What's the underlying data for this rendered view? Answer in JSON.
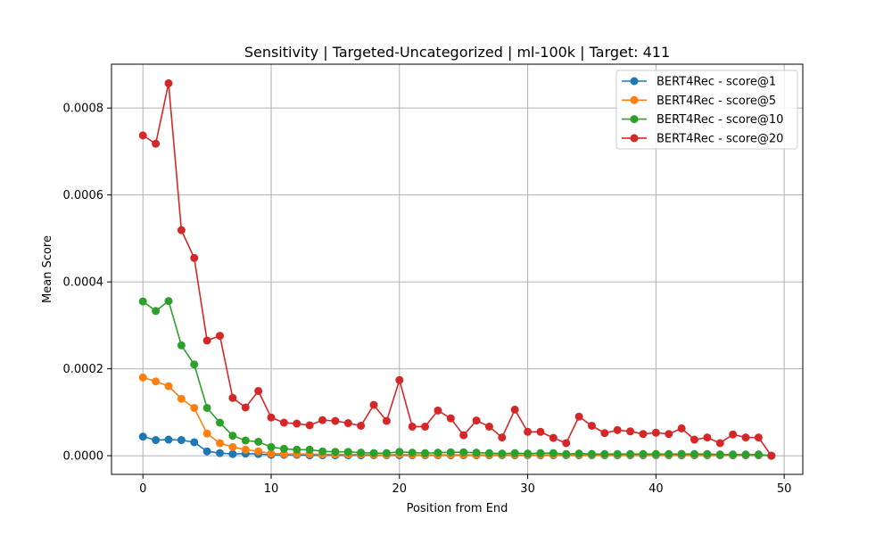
{
  "chart_data": {
    "type": "line",
    "title": "Sensitivity | Targeted-Uncategorized | ml-100k | Target: 411",
    "xlabel": "Position from End",
    "ylabel": "Mean Score",
    "xlim": [
      -2.45,
      51.45
    ],
    "ylim": [
      -4.29e-05,
      0.0009009
    ],
    "xticks": [
      0,
      10,
      20,
      30,
      40,
      50
    ],
    "xtick_labels": [
      "0",
      "10",
      "20",
      "30",
      "40",
      "50"
    ],
    "yticks": [
      0,
      0.0002,
      0.0004,
      0.0006,
      0.0008
    ],
    "ytick_labels": [
      "0.0000",
      "0.0002",
      "0.0004",
      "0.0006",
      "0.0008"
    ],
    "grid": true,
    "legend_position": "top-right",
    "x": [
      0,
      1,
      2,
      3,
      4,
      5,
      6,
      7,
      8,
      9,
      10,
      11,
      12,
      13,
      14,
      15,
      16,
      17,
      18,
      19,
      20,
      21,
      22,
      23,
      24,
      25,
      26,
      27,
      28,
      29,
      30,
      31,
      32,
      33,
      34,
      35,
      36,
      37,
      38,
      39,
      40,
      41,
      42,
      43,
      44,
      45,
      46,
      47,
      48,
      49
    ],
    "series": [
      {
        "name": "BERT4Rec - score@1",
        "color": "#1f77b4",
        "values": [
          4.4e-05,
          3.6e-05,
          3.7e-05,
          3.6e-05,
          3.1e-05,
          1e-05,
          6e-06,
          4e-06,
          5e-06,
          4e-06,
          2e-06,
          2e-06,
          2e-06,
          1e-06,
          1e-06,
          1e-06,
          1e-06,
          1e-06,
          1e-06,
          1e-06,
          1e-06,
          1e-06,
          1e-06,
          1e-06,
          1e-06,
          1e-06,
          1e-06,
          1e-06,
          1e-06,
          1e-06,
          1e-06,
          1e-06,
          1e-06,
          1e-06,
          1e-06,
          1e-06,
          1e-06,
          1e-06,
          1e-06,
          1e-06,
          1e-06,
          1e-06,
          1e-06,
          1e-06,
          1e-06,
          1e-06,
          1e-06,
          1e-06,
          1e-06,
          0.0
        ]
      },
      {
        "name": "BERT4Rec - score@5",
        "color": "#ff7f0e",
        "values": [
          0.00018,
          0.000171,
          0.00016,
          0.000131,
          0.00011,
          5.1e-05,
          2.9e-05,
          2e-05,
          1.4e-05,
          1e-05,
          5e-06,
          4e-06,
          4e-06,
          4e-06,
          3e-06,
          3e-06,
          3e-06,
          3e-06,
          2e-06,
          2e-06,
          3e-06,
          2e-06,
          2e-06,
          2e-06,
          2e-06,
          2e-06,
          2e-06,
          2e-06,
          2e-06,
          2e-06,
          2e-06,
          2e-06,
          2e-06,
          2e-06,
          2e-06,
          2e-06,
          2e-06,
          2e-06,
          2e-06,
          2e-06,
          2e-06,
          2e-06,
          2e-06,
          2e-06,
          2e-06,
          2e-06,
          2e-06,
          2e-06,
          2e-06,
          0.0
        ]
      },
      {
        "name": "BERT4Rec - score@10",
        "color": "#2ca02c",
        "values": [
          0.000355,
          0.000333,
          0.000356,
          0.000254,
          0.00021,
          0.00011,
          7.6e-05,
          4.6e-05,
          3.5e-05,
          3.2e-05,
          2e-05,
          1.6e-05,
          1.4e-05,
          1.4e-05,
          1e-05,
          9e-06,
          9e-06,
          7e-06,
          6e-06,
          6e-06,
          9e-06,
          7e-06,
          6e-06,
          7e-06,
          8e-06,
          8e-06,
          7e-06,
          6e-06,
          5e-06,
          6e-06,
          5e-06,
          6e-06,
          6e-06,
          4e-06,
          5e-06,
          4e-06,
          4e-06,
          4e-06,
          4e-06,
          4e-06,
          4e-06,
          4e-06,
          4e-06,
          4e-06,
          4e-06,
          3e-06,
          3e-06,
          3e-06,
          3e-06,
          0.0
        ]
      },
      {
        "name": "BERT4Rec - score@20",
        "color": "#d62728",
        "values": [
          0.000737,
          0.000718,
          0.000857,
          0.000519,
          0.000455,
          0.000265,
          0.000276,
          0.000133,
          0.000111,
          0.000149,
          8.8e-05,
          7.6e-05,
          7.4e-05,
          7e-05,
          8.2e-05,
          8e-05,
          7.5e-05,
          6.9e-05,
          0.000117,
          8e-05,
          0.000174,
          6.7e-05,
          6.7e-05,
          0.000104,
          8.6e-05,
          4.7e-05,
          8.1e-05,
          6.7e-05,
          4.2e-05,
          0.000106,
          5.5e-05,
          5.5e-05,
          4.1e-05,
          2.9e-05,
          9e-05,
          6.9e-05,
          5.2e-05,
          5.9e-05,
          5.6e-05,
          5e-05,
          5.3e-05,
          5e-05,
          6.3e-05,
          3.7e-05,
          4.2e-05,
          2.9e-05,
          4.9e-05,
          4.2e-05,
          4.2e-05,
          0.0
        ]
      }
    ]
  }
}
